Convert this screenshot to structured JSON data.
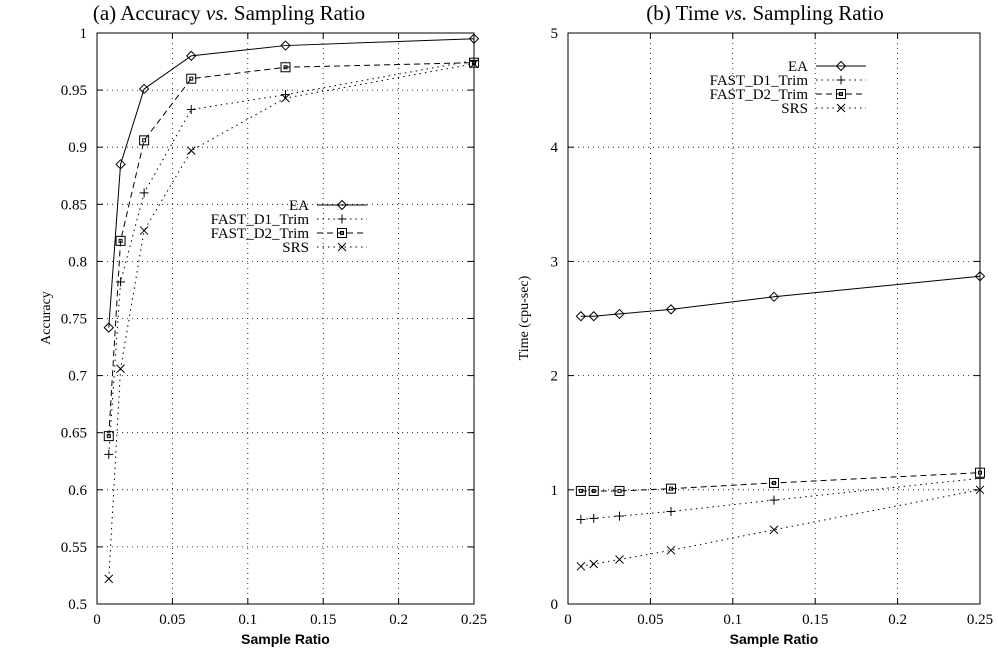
{
  "chart_data": [
    {
      "type": "line",
      "title_prefix": "(a) Accuracy ",
      "title_italic": "vs.",
      "title_suffix": " Sampling Ratio",
      "xlabel": "Sample Ratio",
      "ylabel": "Accuracy",
      "xlim": [
        0,
        0.25
      ],
      "ylim": [
        0.5,
        1
      ],
      "xticks": [
        0,
        0.05,
        0.1,
        0.15,
        0.2,
        0.25
      ],
      "xtick_labels": [
        "0",
        "0.05",
        "0.1",
        "0.15",
        "0.2",
        "0.25"
      ],
      "yticks": [
        0.5,
        0.55,
        0.6,
        0.65,
        0.7,
        0.75,
        0.8,
        0.85,
        0.9,
        0.95,
        1
      ],
      "ytick_labels": [
        "0.5",
        "0.55",
        "0.6",
        "0.65",
        "0.7",
        "0.75",
        "0.8",
        "0.85",
        "0.9",
        "0.95",
        "1"
      ],
      "grid": true,
      "legend_placement": "center-right",
      "x": [
        0.0078125,
        0.015625,
        0.03125,
        0.0625,
        0.125,
        0.25
      ],
      "series": [
        {
          "name": "EA",
          "marker": "diamond",
          "dash": "solid",
          "values": [
            0.742,
            0.885,
            0.951,
            0.98,
            0.989,
            0.995
          ]
        },
        {
          "name": "FAST_D1_Trim",
          "marker": "plus",
          "dash": "dotted",
          "values": [
            0.631,
            0.782,
            0.86,
            0.933,
            0.946,
            0.976
          ]
        },
        {
          "name": "FAST_D2_Trim",
          "marker": "square",
          "dash": "dashed",
          "values": [
            0.647,
            0.818,
            0.906,
            0.96,
            0.97,
            0.974
          ]
        },
        {
          "name": "SRS",
          "marker": "cross",
          "dash": "dotted",
          "values": [
            0.522,
            0.706,
            0.827,
            0.897,
            0.943,
            0.973
          ]
        }
      ]
    },
    {
      "type": "line",
      "title_prefix": "(b) Time ",
      "title_italic": "vs.",
      "title_suffix": " Sampling Ratio",
      "xlabel": "Sample Ratio",
      "ylabel": "Time (cpu-sec)",
      "xlim": [
        0,
        0.25
      ],
      "ylim": [
        0,
        5
      ],
      "xticks": [
        0,
        0.05,
        0.1,
        0.15,
        0.2,
        0.25
      ],
      "xtick_labels": [
        "0",
        "0.05",
        "0.1",
        "0.15",
        "0.2",
        "0.25"
      ],
      "yticks": [
        0,
        1,
        2,
        3,
        4,
        5
      ],
      "ytick_labels": [
        "0",
        "1",
        "2",
        "3",
        "4",
        "5"
      ],
      "grid": true,
      "legend_placement": "top-right",
      "x": [
        0.0078125,
        0.015625,
        0.03125,
        0.0625,
        0.125,
        0.25
      ],
      "series": [
        {
          "name": "EA",
          "marker": "diamond",
          "dash": "solid",
          "values": [
            2.52,
            2.52,
            2.54,
            2.58,
            2.69,
            2.87
          ]
        },
        {
          "name": "FAST_D1_Trim",
          "marker": "plus",
          "dash": "dotted",
          "values": [
            0.74,
            0.75,
            0.77,
            0.81,
            0.91,
            1.1
          ]
        },
        {
          "name": "FAST_D2_Trim",
          "marker": "square",
          "dash": "dashed",
          "values": [
            0.99,
            0.99,
            0.99,
            1.01,
            1.06,
            1.15
          ]
        },
        {
          "name": "SRS",
          "marker": "cross",
          "dash": "dotted",
          "values": [
            0.33,
            0.35,
            0.39,
            0.47,
            0.65,
            1.0
          ]
        }
      ]
    }
  ]
}
